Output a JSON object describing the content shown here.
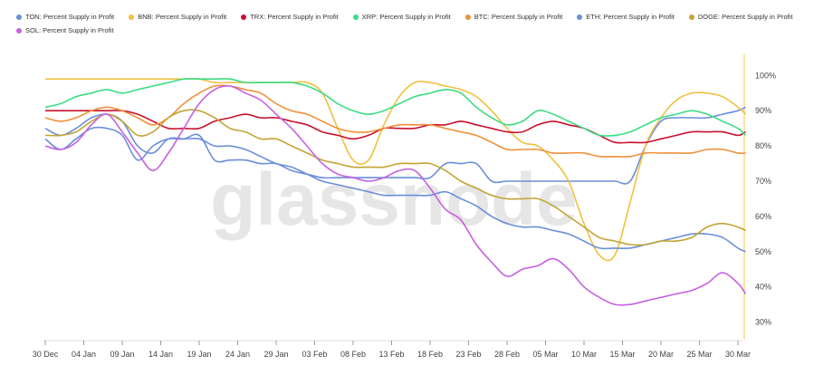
{
  "chart_data": {
    "type": "line",
    "watermark": "glassnode",
    "yaxis_position": "right",
    "ylim": [
      25,
      106
    ],
    "yticks": [
      "30%",
      "40%",
      "50%",
      "60%",
      "70%",
      "80%",
      "90%",
      "100%"
    ],
    "ytick_values": [
      30,
      40,
      50,
      60,
      70,
      80,
      90,
      100
    ],
    "xlim": [
      0,
      123
    ],
    "xticks": [
      "30 Dec",
      "04 Jan",
      "09 Jan",
      "14 Jan",
      "19 Jan",
      "24 Jan",
      "29 Jan",
      "03 Feb",
      "08 Feb",
      "13 Feb",
      "18 Feb",
      "23 Feb",
      "28 Feb",
      "05 Mar",
      "10 Mar",
      "15 Mar",
      "20 Mar",
      "25 Mar",
      "30 Mar"
    ],
    "xtick_values": [
      0,
      5,
      10,
      15,
      20,
      25,
      30,
      35,
      40,
      45,
      50,
      55,
      60,
      65,
      70,
      75,
      80,
      85,
      90
    ],
    "series": [
      {
        "name": "TON: Percent Supply in Profit",
        "color": "#6b8fd9",
        "x": [
          0,
          2,
          4,
          6,
          8,
          10,
          12,
          14,
          16,
          18,
          20,
          22,
          24,
          26,
          28,
          30,
          32,
          34,
          36,
          38,
          40,
          42,
          44,
          46,
          48,
          50,
          52,
          54,
          56,
          58,
          60,
          62,
          64,
          66,
          68,
          70,
          72,
          74,
          76,
          78,
          80,
          82,
          84,
          86,
          88,
          90,
          91
        ],
        "values": [
          82,
          79,
          82,
          85,
          85,
          83,
          76,
          80,
          82,
          82,
          83,
          76,
          76,
          76,
          75,
          75,
          73,
          72,
          71,
          71,
          71,
          71,
          71,
          71,
          71,
          71,
          75,
          75,
          75,
          70,
          70,
          70,
          70,
          70,
          70,
          70,
          70,
          70,
          70,
          80,
          87,
          88,
          88,
          88,
          89,
          90,
          91
        ]
      },
      {
        "name": "BNB: Percent Supply in Profit",
        "color": "#f0c040",
        "x": [
          0,
          2,
          4,
          6,
          8,
          10,
          12,
          14,
          16,
          18,
          20,
          22,
          24,
          26,
          28,
          30,
          32,
          34,
          36,
          38,
          40,
          42,
          44,
          46,
          48,
          50,
          52,
          54,
          56,
          58,
          60,
          62,
          64,
          66,
          68,
          70,
          72,
          74,
          76,
          78,
          80,
          82,
          84,
          86,
          88,
          90,
          91
        ],
        "values": [
          99,
          99,
          99,
          99,
          99,
          99,
          99,
          99,
          99,
          99,
          99,
          98,
          98,
          98,
          98,
          98,
          98,
          98,
          95,
          85,
          76,
          76,
          86,
          94,
          98,
          98,
          97,
          96,
          94,
          90,
          85,
          81,
          80,
          76,
          70,
          58,
          49,
          49,
          64,
          80,
          88,
          93,
          95,
          95,
          94,
          91,
          89
        ]
      },
      {
        "name": "TRX: Percent Supply in Profit",
        "color": "#c8102e",
        "x": [
          0,
          2,
          4,
          6,
          8,
          10,
          12,
          14,
          16,
          18,
          20,
          22,
          24,
          26,
          28,
          30,
          32,
          34,
          36,
          38,
          40,
          42,
          44,
          46,
          48,
          50,
          52,
          54,
          56,
          58,
          60,
          62,
          64,
          66,
          68,
          70,
          72,
          74,
          76,
          78,
          80,
          82,
          84,
          86,
          88,
          90,
          91
        ],
        "values": [
          90,
          90,
          90,
          90,
          90,
          90,
          89,
          87,
          85,
          85,
          85,
          87,
          88,
          89,
          88,
          88,
          87,
          86,
          84,
          83,
          82,
          83,
          85,
          85,
          85,
          86,
          86,
          87,
          86,
          85,
          84,
          84,
          86,
          87,
          86,
          85,
          83,
          81,
          81,
          81,
          82,
          83,
          84,
          84,
          84,
          83,
          84
        ]
      },
      {
        "name": "XRP: Percent Supply in Profit",
        "color": "#3ddc84",
        "x": [
          0,
          2,
          4,
          6,
          8,
          10,
          12,
          14,
          16,
          18,
          20,
          22,
          24,
          26,
          28,
          30,
          32,
          34,
          36,
          38,
          40,
          42,
          44,
          46,
          48,
          50,
          52,
          54,
          56,
          58,
          60,
          62,
          64,
          66,
          68,
          70,
          72,
          74,
          76,
          78,
          80,
          82,
          84,
          86,
          88,
          90,
          91
        ],
        "values": [
          91,
          92,
          94,
          95,
          96,
          95,
          96,
          97,
          98,
          99,
          99,
          99,
          99,
          98,
          98,
          98,
          98,
          97,
          95,
          92,
          90,
          89,
          90,
          92,
          94,
          95,
          96,
          95,
          91,
          88,
          86,
          87,
          90,
          89,
          87,
          85,
          83,
          83,
          84,
          86,
          88,
          89,
          90,
          89,
          87,
          85,
          83
        ]
      },
      {
        "name": "BTC: Percent Supply in Profit",
        "color": "#f0913a",
        "x": [
          0,
          2,
          4,
          6,
          8,
          10,
          12,
          14,
          16,
          18,
          20,
          22,
          24,
          26,
          28,
          30,
          32,
          34,
          36,
          38,
          40,
          42,
          44,
          46,
          48,
          50,
          52,
          54,
          56,
          58,
          60,
          62,
          64,
          66,
          68,
          70,
          72,
          74,
          76,
          78,
          80,
          82,
          84,
          86,
          88,
          90,
          91
        ],
        "values": [
          88,
          87,
          88,
          90,
          91,
          90,
          88,
          86,
          88,
          92,
          95,
          97,
          97,
          96,
          95,
          92,
          90,
          89,
          87,
          85,
          84,
          84,
          85,
          86,
          86,
          86,
          85,
          84,
          83,
          81,
          79,
          79,
          79,
          78,
          78,
          78,
          77,
          77,
          77,
          78,
          78,
          78,
          78,
          79,
          79,
          78,
          78
        ]
      },
      {
        "name": "ETH: Percent Supply in Profit",
        "color": "#6b8fd9",
        "x": [
          0,
          2,
          4,
          6,
          8,
          10,
          12,
          14,
          16,
          18,
          20,
          22,
          24,
          26,
          28,
          30,
          32,
          34,
          36,
          38,
          40,
          42,
          44,
          46,
          48,
          50,
          52,
          54,
          56,
          58,
          60,
          62,
          64,
          66,
          68,
          70,
          72,
          74,
          76,
          78,
          80,
          82,
          84,
          86,
          88,
          90,
          91
        ],
        "values": [
          85,
          83,
          85,
          88,
          89,
          87,
          80,
          78,
          82,
          82,
          82,
          80,
          80,
          79,
          77,
          75,
          74,
          72,
          70,
          69,
          68,
          67,
          66,
          66,
          66,
          66,
          67,
          65,
          63,
          60,
          58,
          57,
          57,
          56,
          55,
          53,
          51,
          51,
          51,
          52,
          53,
          54,
          55,
          55,
          54,
          51,
          50
        ]
      },
      {
        "name": "DOGE: Percent Supply in Profit",
        "color": "#c4a435",
        "x": [
          0,
          2,
          4,
          6,
          8,
          10,
          12,
          14,
          16,
          18,
          20,
          22,
          24,
          26,
          28,
          30,
          32,
          34,
          36,
          38,
          40,
          42,
          44,
          46,
          48,
          50,
          52,
          54,
          56,
          58,
          60,
          62,
          64,
          66,
          68,
          70,
          72,
          74,
          76,
          78,
          80,
          82,
          84,
          86,
          88,
          90,
          91
        ],
        "values": [
          83,
          83,
          84,
          87,
          89,
          87,
          83,
          84,
          88,
          90,
          90,
          88,
          85,
          84,
          82,
          82,
          80,
          78,
          76,
          75,
          74,
          74,
          74,
          75,
          75,
          75,
          73,
          70,
          68,
          66,
          65,
          65,
          65,
          63,
          60,
          57,
          54,
          53,
          52,
          52,
          53,
          53,
          54,
          57,
          58,
          57,
          56
        ]
      },
      {
        "name": "SOL: Percent Supply in Profit",
        "color": "#c661e0",
        "x": [
          0,
          2,
          4,
          6,
          8,
          10,
          12,
          14,
          16,
          18,
          20,
          22,
          24,
          26,
          28,
          30,
          32,
          34,
          36,
          38,
          40,
          42,
          44,
          46,
          48,
          50,
          52,
          54,
          56,
          58,
          60,
          62,
          64,
          66,
          68,
          70,
          72,
          74,
          76,
          78,
          80,
          82,
          84,
          86,
          88,
          90,
          91
        ],
        "values": [
          80,
          79,
          81,
          86,
          89,
          84,
          78,
          73,
          78,
          85,
          92,
          96,
          97,
          95,
          93,
          89,
          85,
          80,
          75,
          72,
          71,
          70,
          71,
          73,
          73,
          68,
          62,
          59,
          52,
          47,
          43,
          45,
          46,
          48,
          45,
          40,
          37,
          35,
          35,
          36,
          37,
          38,
          39,
          41,
          44,
          41,
          38
        ]
      }
    ]
  }
}
